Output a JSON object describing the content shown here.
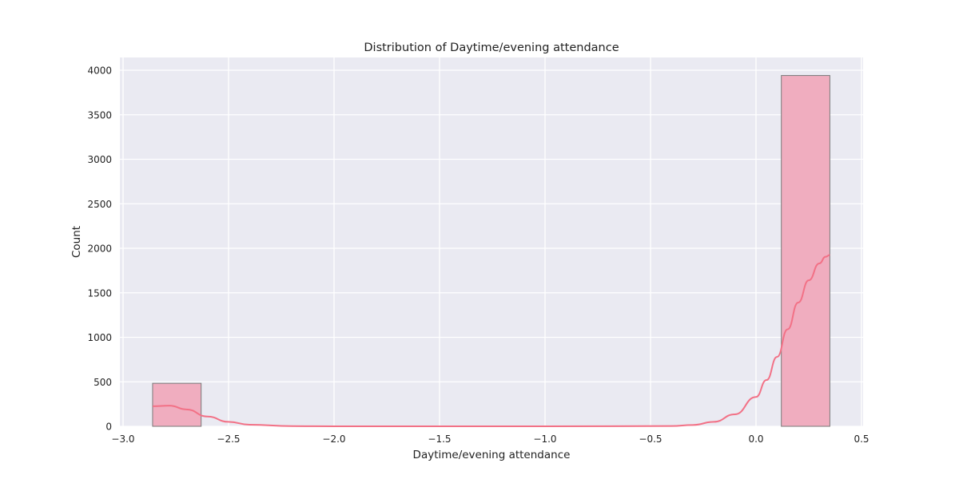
{
  "chart_data": {
    "type": "bar",
    "title": "Distribution of Daytime/evening attendance\t",
    "xlabel": "Daytime/evening attendance\t",
    "ylabel": "Count",
    "xlim": [
      -3.0,
      0.5
    ],
    "ylim": [
      0,
      4000
    ],
    "x_ticks": [
      -3.0,
      -2.5,
      -2.0,
      -1.5,
      -1.0,
      -0.5,
      0.0,
      0.5
    ],
    "x_tick_labels": [
      "−3.0",
      "−2.5",
      "−2.0",
      "−1.5",
      "−1.0",
      "−0.5",
      "0.0",
      "0.5"
    ],
    "y_ticks": [
      0,
      500,
      1000,
      1500,
      2000,
      2500,
      3000,
      3500,
      4000
    ],
    "y_tick_labels": [
      "0",
      "500",
      "1000",
      "1500",
      "2000",
      "2500",
      "3000",
      "3500",
      "4000"
    ],
    "grid": true,
    "bars": [
      {
        "x0": -2.86,
        "x1": -2.63,
        "count": 483
      },
      {
        "x0": 0.12,
        "x1": 0.35,
        "count": 3941
      }
    ],
    "kde": {
      "x": [
        -2.86,
        -2.78,
        -2.7,
        -2.6,
        -2.5,
        -2.4,
        -2.2,
        -2.0,
        -1.0,
        -0.4,
        -0.3,
        -0.2,
        -0.1,
        0.0,
        0.05,
        0.1,
        0.15,
        0.2,
        0.25,
        0.3,
        0.33,
        0.35
      ],
      "y": [
        225,
        232,
        190,
        110,
        50,
        18,
        2,
        0,
        0,
        3,
        15,
        50,
        135,
        330,
        520,
        780,
        1090,
        1390,
        1640,
        1830,
        1905,
        1925
      ]
    },
    "colors": {
      "background": "#eaeaf2",
      "grid": "#ffffff",
      "bar_fill": "#f0adbf",
      "bar_edge": "#7a7a7a",
      "kde_line": "#f27186"
    }
  }
}
